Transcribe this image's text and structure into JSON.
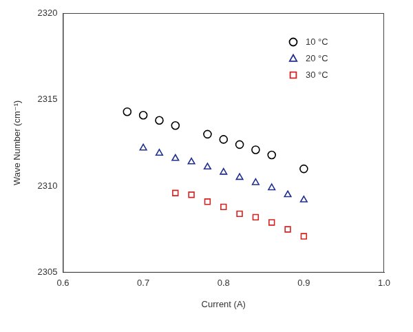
{
  "chart_data": {
    "type": "scatter",
    "x_label": "Current (A)",
    "y_label": "Wave Number (cm⁻¹)",
    "xlim": [
      0.6,
      1.0
    ],
    "xticks": [
      0.6,
      0.7,
      0.8,
      0.9,
      {
        "value": 1,
        "label": "1.0"
      }
    ],
    "ylim": [
      2305,
      2320
    ],
    "yticks": [
      2305,
      2310,
      2315,
      2320
    ],
    "grid": false,
    "legend": "top-right",
    "series": [
      {
        "name": "10 °C",
        "color": "#000000",
        "marker": "circle",
        "x": [
          0.68,
          0.7,
          0.72,
          0.74,
          0.78,
          0.8,
          0.82,
          0.84,
          0.86,
          0.9
        ],
        "values": [
          2314.3,
          2314.1,
          2313.8,
          2313.5,
          2313.0,
          2312.7,
          2312.4,
          2312.1,
          2311.8,
          2311.0
        ]
      },
      {
        "name": "20 °C",
        "color": "#1f2f8f",
        "marker": "triangle",
        "x": [
          0.7,
          0.72,
          0.74,
          0.76,
          0.78,
          0.8,
          0.82,
          0.84,
          0.86,
          0.88,
          0.9
        ],
        "values": [
          2312.2,
          2311.9,
          2311.6,
          2311.4,
          2311.1,
          2310.8,
          2310.5,
          2310.2,
          2309.9,
          2309.5,
          2309.2
        ]
      },
      {
        "name": "30 °C",
        "color": "#d62020",
        "marker": "square",
        "x": [
          0.74,
          0.76,
          0.78,
          0.8,
          0.82,
          0.84,
          0.86,
          0.88,
          0.9
        ],
        "values": [
          2309.6,
          2309.5,
          2309.1,
          2308.8,
          2308.4,
          2308.2,
          2307.9,
          2307.5,
          2307.1
        ]
      }
    ]
  }
}
